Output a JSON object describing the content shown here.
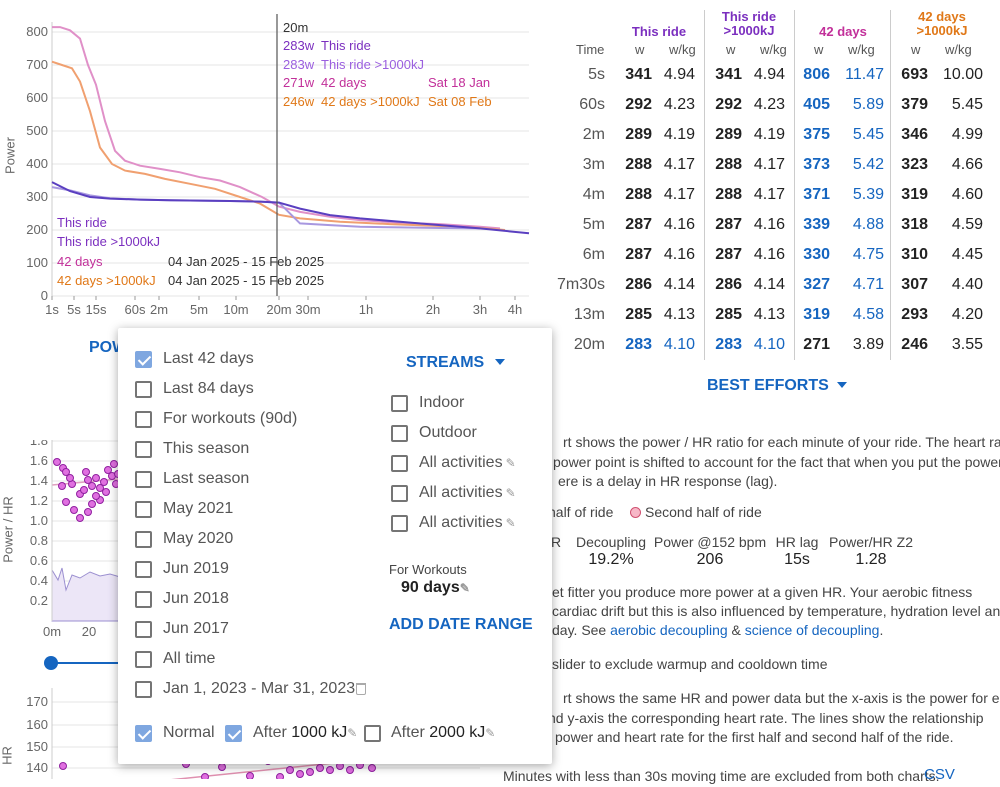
{
  "power_chart": {
    "ylabel": "Power",
    "yticks": [
      "0",
      "100",
      "200",
      "300",
      "400",
      "500",
      "600",
      "700",
      "800"
    ],
    "xticks": [
      "1s",
      "5s",
      "15s",
      "60s",
      "2m",
      "5m",
      "10m",
      "20m",
      "30m",
      "1h",
      "2h",
      "3h",
      "4h"
    ],
    "tooltip": {
      "time": "20m",
      "rows": [
        {
          "watts": "283w",
          "label": "This ride",
          "date": "",
          "color": "#7b2fbf"
        },
        {
          "watts": "283w",
          "label": "This ride >1000kJ",
          "date": "",
          "color": "#9b5fdf"
        },
        {
          "watts": "271w",
          "label": "42 days",
          "date": "Sat 18 Jan",
          "color": "#c2309a"
        },
        {
          "watts": "246w",
          "label": "42 days >1000kJ",
          "date": "Sat 08 Feb",
          "color": "#e07818"
        }
      ]
    },
    "legend": [
      {
        "label": "This ride",
        "range": "",
        "color": "#7b2fbf"
      },
      {
        "label": "This ride >1000kJ",
        "range": "",
        "color": "#7b2fbf"
      },
      {
        "label": "42 days",
        "range": "04 Jan 2025 - 15 Feb 2025",
        "color": "#c2309a"
      },
      {
        "label": "42 days >1000kJ",
        "range": "04 Jan 2025 - 15 Feb 2025",
        "color": "#e07818"
      }
    ],
    "power_button": "POW"
  },
  "power_table": {
    "time_header": "Time",
    "groups": [
      {
        "title_line1": "This ride",
        "title_line2": "",
        "color": "#7b2fbf"
      },
      {
        "title_line1": "This ride",
        ">1000kJ": "",
        "title_line2": ">1000kJ",
        "color": "#7b2fbf"
      },
      {
        "title_line1": "42 days",
        "title_line2": "",
        "color": "#c2309a"
      },
      {
        "title_line1": "42 days",
        "title_line2": ">1000kJ",
        "color": "#e07818"
      }
    ],
    "sub_w": "w",
    "sub_wkg": "w/kg",
    "rows": [
      {
        "t": "5s",
        "v": [
          "341",
          "4.94",
          "341",
          "4.94",
          "806",
          "11.47",
          "693",
          "10.00"
        ],
        "hl": [
          false,
          false,
          false,
          false,
          true,
          true,
          false,
          false
        ]
      },
      {
        "t": "60s",
        "v": [
          "292",
          "4.23",
          "292",
          "4.23",
          "405",
          "5.89",
          "379",
          "5.45"
        ],
        "hl": [
          false,
          false,
          false,
          false,
          true,
          true,
          false,
          false
        ]
      },
      {
        "t": "2m",
        "v": [
          "289",
          "4.19",
          "289",
          "4.19",
          "375",
          "5.45",
          "346",
          "4.99"
        ],
        "hl": [
          false,
          false,
          false,
          false,
          true,
          true,
          false,
          false
        ]
      },
      {
        "t": "3m",
        "v": [
          "288",
          "4.17",
          "288",
          "4.17",
          "373",
          "5.42",
          "323",
          "4.66"
        ],
        "hl": [
          false,
          false,
          false,
          false,
          true,
          true,
          false,
          false
        ]
      },
      {
        "t": "4m",
        "v": [
          "288",
          "4.17",
          "288",
          "4.17",
          "371",
          "5.39",
          "319",
          "4.60"
        ],
        "hl": [
          false,
          false,
          false,
          false,
          true,
          true,
          false,
          false
        ]
      },
      {
        "t": "5m",
        "v": [
          "287",
          "4.16",
          "287",
          "4.16",
          "339",
          "4.88",
          "318",
          "4.59"
        ],
        "hl": [
          false,
          false,
          false,
          false,
          true,
          true,
          false,
          false
        ]
      },
      {
        "t": "6m",
        "v": [
          "287",
          "4.16",
          "287",
          "4.16",
          "330",
          "4.75",
          "310",
          "4.45"
        ],
        "hl": [
          false,
          false,
          false,
          false,
          true,
          true,
          false,
          false
        ]
      },
      {
        "t": "7m30s",
        "v": [
          "286",
          "4.14",
          "286",
          "4.14",
          "327",
          "4.71",
          "307",
          "4.40"
        ],
        "hl": [
          false,
          false,
          false,
          false,
          true,
          true,
          false,
          false
        ]
      },
      {
        "t": "13m",
        "v": [
          "285",
          "4.13",
          "285",
          "4.13",
          "319",
          "4.58",
          "293",
          "4.20"
        ],
        "hl": [
          false,
          false,
          false,
          false,
          true,
          true,
          false,
          false
        ]
      },
      {
        "t": "20m",
        "v": [
          "283",
          "4.10",
          "283",
          "4.10",
          "271",
          "3.89",
          "246",
          "3.55"
        ],
        "hl": [
          true,
          true,
          true,
          true,
          false,
          false,
          false,
          false
        ]
      }
    ],
    "best_efforts_label": "BEST EFFORTS"
  },
  "decoupling": {
    "text1": [
      "rt shows the power / HR ratio for each minute of your ride. The heart rate",
      "power point is shifted to account for the fact that when you put the power",
      "ere is a delay in HR response (lag)."
    ],
    "legend1": "half of ride",
    "legend2": "Second half of ride",
    "stats": [
      {
        "label": "HR",
        "value": ""
      },
      {
        "label": "Decoupling",
        "value": "19.2%"
      },
      {
        "label": "Power @152 bpm",
        "value": "206"
      },
      {
        "label": "HR lag",
        "value": "15s"
      },
      {
        "label": "Power/HR Z2",
        "value": "1.28"
      }
    ],
    "text2a": "et fitter you produce more power at a given HR. Your aerobic fitness",
    "text2b": "cardiac drift but this is also influenced by temperature, hydration level and",
    "text2c_prefix": "day. See ",
    "link_aerobic": "aerobic decoupling",
    "amp": " & ",
    "link_science": "science of decoupling",
    "period": ".",
    "slider_text": "slider to exclude warmup and cooldown time",
    "text3": [
      "rt shows the same HR and power data but the x-axis is the power for each",
      "nd y-axis the corresponding heart rate. The lines show the relationship",
      "power and heart rate for the first half and second half of the ride."
    ],
    "footer": "Minutes with less than 30s moving time are excluded from both charts.",
    "csv": "CSV"
  },
  "ratio_chart": {
    "ylabel": "Power / HR",
    "yticks": [
      "0.2",
      "0.4",
      "0.6",
      "0.8",
      "1.0",
      "1.2",
      "1.4",
      "1.6",
      "1.8"
    ],
    "xticks": [
      "0m",
      "20"
    ]
  },
  "hr_chart": {
    "ylabel": "HR",
    "yticks": [
      "140",
      "150",
      "160",
      "170"
    ]
  },
  "popup": {
    "left_items": [
      {
        "label": "Last 42 days",
        "checked": true
      },
      {
        "label": "Last 84 days",
        "checked": false
      },
      {
        "label": "For workouts (90d)",
        "checked": false
      },
      {
        "label": "This season",
        "checked": false
      },
      {
        "label": "Last season",
        "checked": false
      },
      {
        "label": "May 2021",
        "checked": false
      },
      {
        "label": "May 2020",
        "checked": false
      },
      {
        "label": "Jun 2019",
        "checked": false
      },
      {
        "label": "Jun 2018",
        "checked": false
      },
      {
        "label": "Jun 2017",
        "checked": false
      },
      {
        "label": "All time",
        "checked": false
      },
      {
        "label": "Jan 1, 2023 - Mar 31, 2023",
        "checked": false
      }
    ],
    "streams_label": "STREAMS",
    "right_items": [
      {
        "label": "Indoor",
        "checked": false,
        "pencil": false
      },
      {
        "label": "Outdoor",
        "checked": false,
        "pencil": false
      },
      {
        "label": "All activities",
        "checked": false,
        "pencil": true
      },
      {
        "label": "All activities",
        "checked": false,
        "pencil": true
      },
      {
        "label": "All activities",
        "checked": false,
        "pencil": true
      }
    ],
    "for_workouts_label": "For Workouts",
    "for_workouts_value": "90 days",
    "add_date_range": "ADD DATE RANGE",
    "bottom": {
      "normal": "Normal",
      "after1_prefix": "After",
      "after1_value": "1000 kJ",
      "after2_prefix": "After",
      "after2_value": "2000 kJ"
    }
  }
}
